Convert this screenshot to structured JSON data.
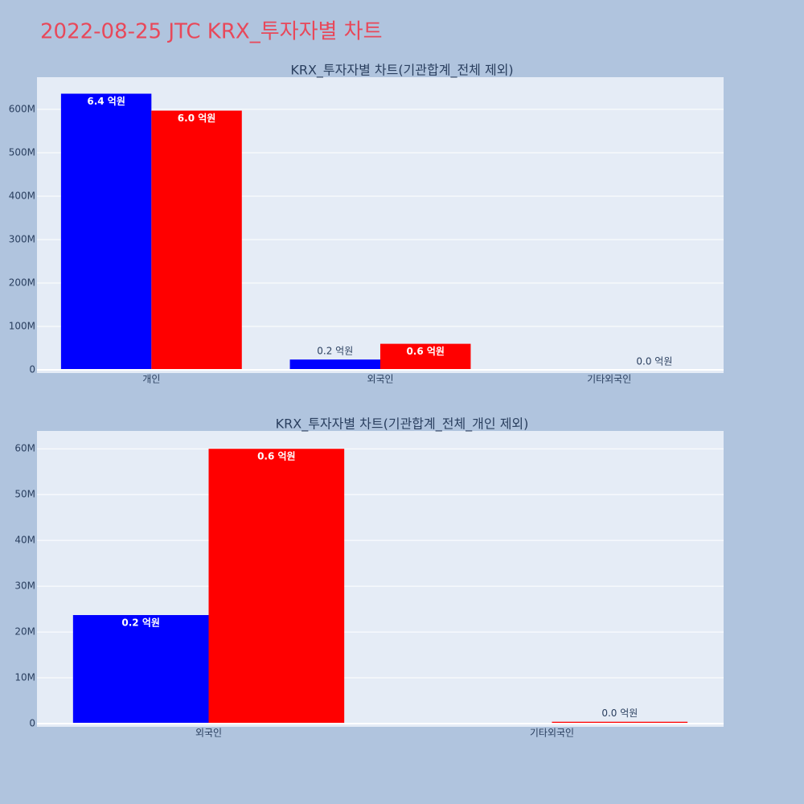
{
  "title": "2022-08-25 JTC KRX_투자자별 차트",
  "chart_data": [
    {
      "type": "bar",
      "title": "KRX_투자자별 차트(기관합계_전체 제외)",
      "categories": [
        "개인",
        "외국인",
        "기타외국인"
      ],
      "series": [
        {
          "color": "#0000ff",
          "values": [
            636000000,
            23700000,
            null
          ],
          "value_labels": [
            "6.4 억원",
            "0.2 억원",
            null
          ]
        },
        {
          "color": "#ff0000",
          "values": [
            597000000,
            60000000,
            400000
          ],
          "value_labels": [
            "6.0 억원",
            "0.6 억원",
            "0.0 억원"
          ]
        }
      ],
      "ylim": [
        -7400000,
        674000000
      ],
      "yticks": [
        0,
        {
          "value": 100000000,
          "label": "100M"
        },
        {
          "value": 200000000,
          "label": "200M"
        },
        {
          "value": 300000000,
          "label": "300M"
        },
        {
          "value": 400000000,
          "label": "400M"
        },
        {
          "value": 500000000,
          "label": "500M"
        },
        {
          "value": 600000000,
          "label": "600M"
        }
      ],
      "grid": true
    },
    {
      "type": "bar",
      "title": "KRX_투자자별 차트(기관합계_전체_개인 제외)",
      "categories": [
        "외국인",
        "기타외국인"
      ],
      "series": [
        {
          "color": "#0000ff",
          "values": [
            23700000,
            null
          ],
          "value_labels": [
            "0.2 억원",
            null
          ]
        },
        {
          "color": "#ff0000",
          "values": [
            60000000,
            400000
          ],
          "value_labels": [
            "0.6 억원",
            "0.0 억원"
          ]
        }
      ],
      "ylim": [
        -700000,
        63900000
      ],
      "yticks": [
        0,
        {
          "value": 10000000,
          "label": "10M"
        },
        {
          "value": 20000000,
          "label": "20M"
        },
        {
          "value": 30000000,
          "label": "30M"
        },
        {
          "value": 40000000,
          "label": "40M"
        },
        {
          "value": 50000000,
          "label": "50M"
        },
        {
          "value": 60000000,
          "label": "60M"
        }
      ],
      "grid": true
    }
  ]
}
